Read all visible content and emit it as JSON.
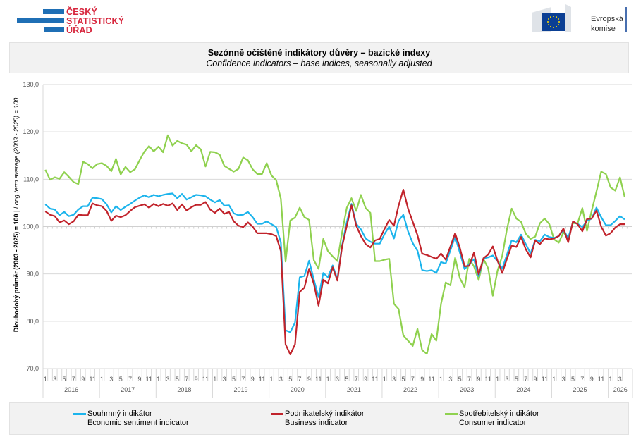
{
  "header": {
    "csu_logo_text": [
      "ČESKÝ",
      "STATISTICKÝ",
      "ÚŘAD"
    ],
    "eu_logo_text": [
      "Evropská",
      "komise"
    ]
  },
  "title": "Sezónně očištěné indikátory důvěry – bazické indexy",
  "subtitle": "Confidence indicators – base indices, seasonally adjusted",
  "chart_data": {
    "type": "line",
    "title": "Sezónně očištěné indikátory důvěry – bazické indexy",
    "subtitle": "Confidence indicators – base indices, seasonally adjusted",
    "ylabel_cz": "Dlouhodobý průměr (2003 - 2025) = 100",
    "ylabel_sep": " | ",
    "ylabel_en": "Long term average (2003 - 2025) = 100",
    "ylim": [
      70,
      130
    ],
    "yticks": [
      "70,0",
      "80,0",
      "90,0",
      "100,0",
      "110,0",
      "120,0",
      "130,0"
    ],
    "ytick_values": [
      70,
      80,
      90,
      100,
      110,
      120,
      130
    ],
    "x_start": "2016-01",
    "x_end": "2026-04",
    "x_frequency": "monthly",
    "month_tick_labels": [
      "1",
      "3",
      "5",
      "7",
      "9",
      "11"
    ],
    "years": [
      "2016",
      "2017",
      "2018",
      "2019",
      "2020",
      "2021",
      "2022",
      "2023",
      "2024",
      "2025",
      "2026"
    ],
    "grid": "horizontal",
    "legend_position": "bottom",
    "series": [
      {
        "name": "Souhrnný indikátor",
        "name_en": "Economic sentiment indicator",
        "color": "#1cb4ec",
        "values": [
          104.7,
          103.8,
          103.6,
          102.4,
          103.1,
          102.2,
          102.5,
          103.6,
          104.3,
          104.3,
          106.1,
          106.0,
          105.8,
          104.7,
          103.0,
          104.3,
          103.5,
          104.2,
          104.8,
          105.5,
          106.1,
          106.6,
          106.2,
          106.7,
          106.4,
          106.7,
          106.9,
          107.0,
          106.0,
          106.9,
          105.7,
          106.2,
          106.7,
          106.6,
          106.4,
          105.7,
          105.1,
          105.6,
          104.4,
          104.5,
          102.8,
          102.4,
          102.5,
          103.1,
          102.0,
          100.6,
          100.6,
          101.1,
          100.5,
          99.9,
          96.7,
          78.1,
          77.7,
          79.7,
          89.3,
          89.6,
          92.8,
          88.8,
          85.1,
          90.2,
          89.3,
          91.8,
          88.9,
          96.1,
          101.0,
          104.8,
          100.6,
          99.4,
          97.5,
          96.8,
          96.4,
          96.4,
          98.4,
          100.0,
          97.5,
          101.2,
          102.5,
          99.0,
          96.5,
          94.9,
          90.8,
          90.6,
          90.8,
          90.2,
          92.5,
          92.2,
          95.0,
          97.9,
          94.5,
          91.0,
          92.1,
          93.1,
          89.5,
          93.3,
          93.5,
          93.9,
          92.7,
          91.1,
          94.1,
          97.1,
          96.7,
          98.3,
          96.3,
          94.3,
          97.2,
          96.9,
          98.3,
          97.8,
          97.6,
          98.0,
          99.3,
          97.6,
          100.9,
          100.6,
          99.9,
          101.2,
          101.7,
          104.0,
          102.0,
          100.3,
          100.3,
          101.2,
          102.2,
          101.5
        ]
      },
      {
        "name": "Podnikatelský indikátor",
        "name_en": "Business indicator",
        "color": "#c1232b",
        "values": [
          103.2,
          102.5,
          102.2,
          100.9,
          101.3,
          100.5,
          101.1,
          102.5,
          102.4,
          102.4,
          104.9,
          104.5,
          104.3,
          103.3,
          101.2,
          102.3,
          102.0,
          102.4,
          103.3,
          104.1,
          104.4,
          104.7,
          104.0,
          104.8,
          104.3,
          104.8,
          104.4,
          104.9,
          103.5,
          104.7,
          103.4,
          104.1,
          104.6,
          104.6,
          105.2,
          103.6,
          102.9,
          103.8,
          102.7,
          103.1,
          101.1,
          100.2,
          99.9,
          100.9,
          100.0,
          98.6,
          98.6,
          98.6,
          98.4,
          98.0,
          94.8,
          75.1,
          73.0,
          75.1,
          86.2,
          87.1,
          91.1,
          87.9,
          83.3,
          88.8,
          88.0,
          91.4,
          88.6,
          95.8,
          100.2,
          104.5,
          100.2,
          98.0,
          96.3,
          95.6,
          97.1,
          97.4,
          99.5,
          101.4,
          100.2,
          104.4,
          107.8,
          103.8,
          101.0,
          98.2,
          94.3,
          94.0,
          93.6,
          93.2,
          94.3,
          93.0,
          95.8,
          98.6,
          95.5,
          91.6,
          91.7,
          94.5,
          89.9,
          93.3,
          94.1,
          95.8,
          92.8,
          90.2,
          93.2,
          96.0,
          95.7,
          97.8,
          95.2,
          93.5,
          97.1,
          96.3,
          97.5,
          97.3,
          97.5,
          98.0,
          99.6,
          96.7,
          101.1,
          100.5,
          99.0,
          101.6,
          101.7,
          103.4,
          100.0,
          98.1,
          98.6,
          99.8,
          100.5,
          100.5
        ]
      },
      {
        "name": "Spotřebitelský indikátor",
        "name_en": "Consumer indicator",
        "color": "#8fd14f",
        "values": [
          112.0,
          109.9,
          110.4,
          110.1,
          111.5,
          110.5,
          109.4,
          109.0,
          113.7,
          113.2,
          112.3,
          113.2,
          113.4,
          112.8,
          111.7,
          114.3,
          111.0,
          112.6,
          111.5,
          112.1,
          114.0,
          115.8,
          117.0,
          115.9,
          116.9,
          115.7,
          119.3,
          117.1,
          118.1,
          117.6,
          117.3,
          115.9,
          117.2,
          116.3,
          112.7,
          115.8,
          115.7,
          115.2,
          112.8,
          112.2,
          111.6,
          112.2,
          114.6,
          114.0,
          112.1,
          111.1,
          111.1,
          113.4,
          110.8,
          109.8,
          105.9,
          92.6,
          101.3,
          101.9,
          104.0,
          102.0,
          101.4,
          92.9,
          91.1,
          97.4,
          94.8,
          93.7,
          92.7,
          98.8,
          104.0,
          106.0,
          103.3,
          106.7,
          103.9,
          102.9,
          92.7,
          92.7,
          93.0,
          93.2,
          83.7,
          82.6,
          77.0,
          75.9,
          74.8,
          78.4,
          73.9,
          73.1,
          77.3,
          75.9,
          83.7,
          88.2,
          87.6,
          93.4,
          89.1,
          87.2,
          93.2,
          91.6,
          88.7,
          93.2,
          91.2,
          85.4,
          90.7,
          93.8,
          99.5,
          103.8,
          101.7,
          101.0,
          98.5,
          97.4,
          97.9,
          100.7,
          101.7,
          100.5,
          97.3,
          96.6,
          98.8,
          97.5,
          100.7,
          100.7,
          103.9,
          99.1,
          103.4,
          107.4,
          111.6,
          111.1,
          108.3,
          107.6,
          110.4,
          106.2
        ]
      }
    ]
  }
}
